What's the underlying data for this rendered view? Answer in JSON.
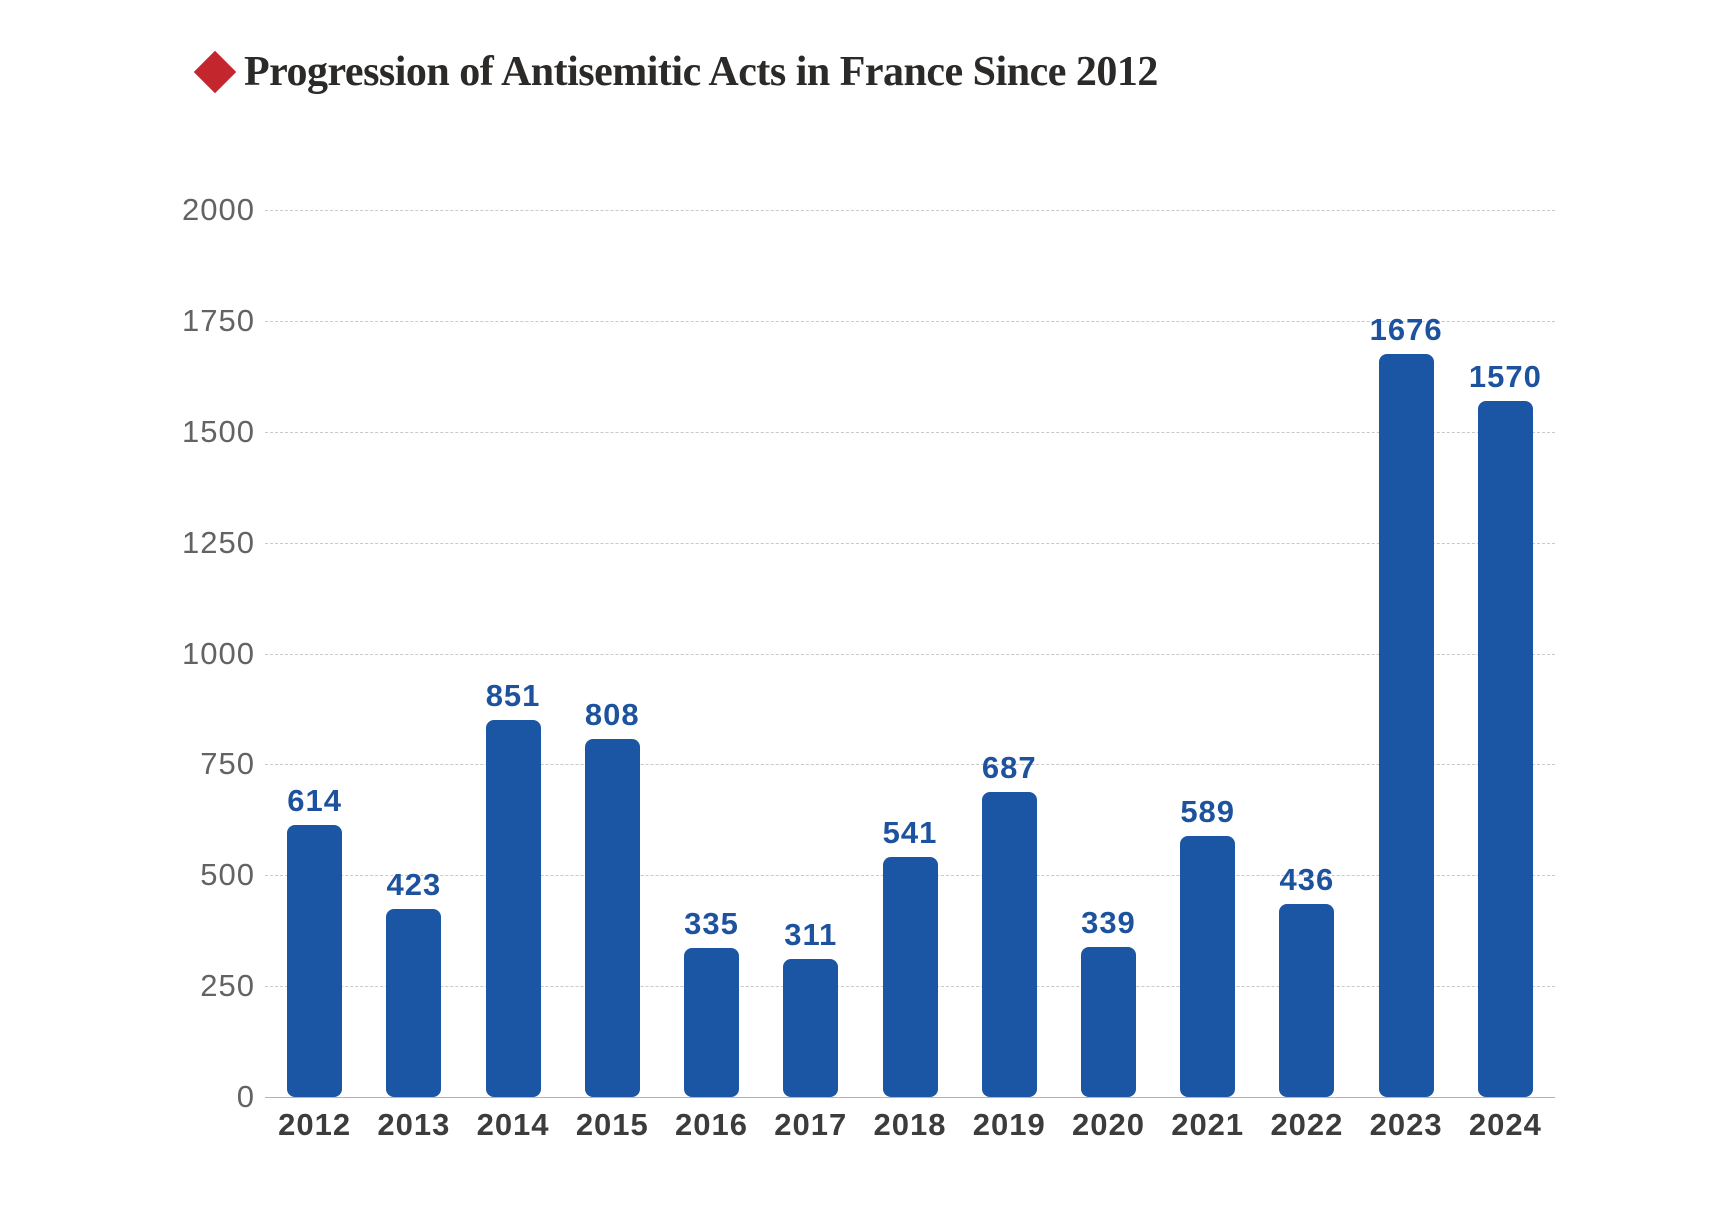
{
  "header": {
    "bullet_icon_color": "#c4262e",
    "title": "Progression of Antisemitic Acts in France Since 2012",
    "title_color": "#2b2a28"
  },
  "chart_data": {
    "type": "bar",
    "title": "Progression of Antisemitic Acts in France Since 2012",
    "categories": [
      "2012",
      "2013",
      "2014",
      "2015",
      "2016",
      "2017",
      "2018",
      "2019",
      "2020",
      "2021",
      "2022",
      "2023",
      "2024"
    ],
    "values": [
      614,
      423,
      851,
      808,
      335,
      311,
      541,
      687,
      339,
      589,
      436,
      1676,
      1570
    ],
    "xlabel": "",
    "ylabel": "",
    "ylim": [
      0,
      2000
    ],
    "yticks": [
      0,
      250,
      500,
      750,
      1000,
      1250,
      1500,
      1750,
      2000
    ],
    "grid": "horizontal-dashed",
    "legend": "none",
    "bar_color": "#1b56a4",
    "value_label_color": "#1d539e",
    "ytick_color": "#636363",
    "xtick_color": "#3c3c3c"
  }
}
